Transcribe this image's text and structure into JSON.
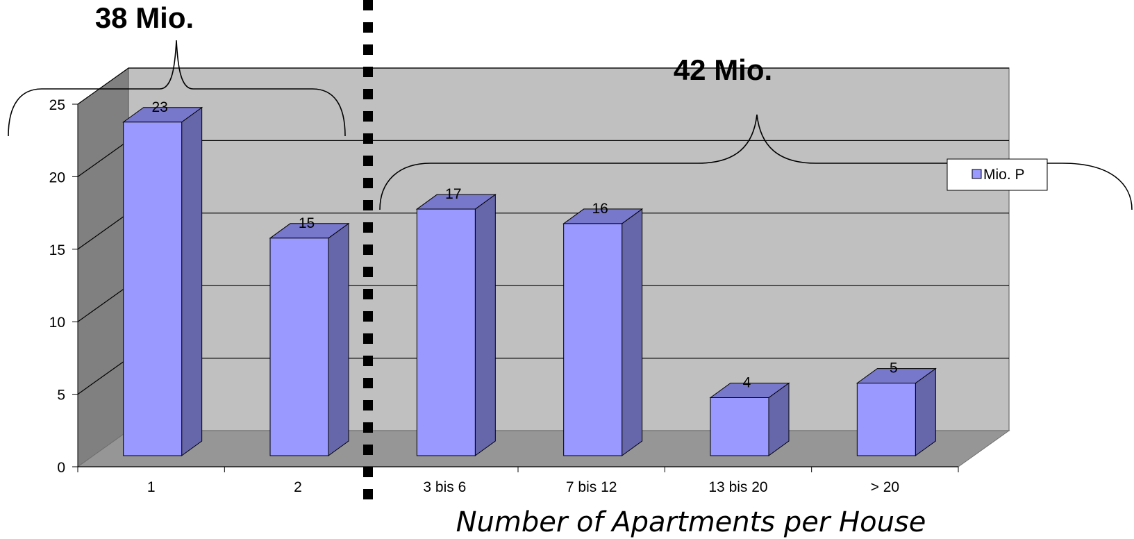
{
  "chart_data": {
    "type": "bar",
    "categories": [
      "1",
      "2",
      "3 bis 6",
      "7 bis 12",
      "13 bis 20",
      "> 20"
    ],
    "series": [
      {
        "name": "Mio. P",
        "values": [
          23,
          15,
          17,
          16,
          4,
          5
        ]
      }
    ],
    "data_labels": [
      "23",
      "15",
      "17",
      "16",
      "4",
      "5"
    ],
    "xlabel": "Number of Apartments per House",
    "ylabel": "",
    "ylim": [
      0,
      25
    ],
    "yticks": [
      "0",
      "5",
      "10",
      "15",
      "20",
      "25"
    ],
    "grid": true,
    "legend": "right",
    "annotations": [
      {
        "text": "38 Mio.",
        "spans_categories": [
          "1",
          "2"
        ]
      },
      {
        "text": "42 Mio.",
        "spans_categories": [
          "3 bis 6",
          "7 bis 12",
          "13 bis 20",
          "> 20"
        ]
      }
    ],
    "divider": {
      "style": "dashed",
      "between_categories": [
        "2",
        "3 bis 6"
      ]
    },
    "colors": {
      "bar_front": "#9999ff",
      "bar_side": "#6666aa",
      "bar_top": "#7777cc",
      "back_wall": "#c0c0c0",
      "side_wall": "#808080",
      "floor": "#969696"
    }
  }
}
